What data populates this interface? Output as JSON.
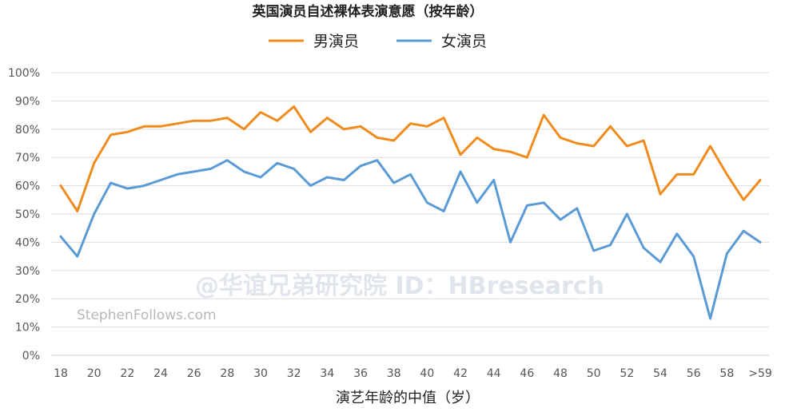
{
  "chart_data": {
    "type": "line",
    "title": "英国演员自述裸体表演意愿（按年龄）",
    "xlabel": "演艺年龄的中值（岁）",
    "ylabel": "",
    "ylim": [
      0,
      100
    ],
    "yticks": [
      "0%",
      "10%",
      "20%",
      "30%",
      "40%",
      "50%",
      "60%",
      "70%",
      "80%",
      "90%",
      "100%"
    ],
    "categories": [
      "18",
      "19",
      "20",
      "21",
      "22",
      "23",
      "24",
      "25",
      "26",
      "27",
      "28",
      "29",
      "30",
      "31",
      "32",
      "33",
      "34",
      "35",
      "36",
      "37",
      "38",
      "39",
      "40",
      "41",
      "42",
      "43",
      "44",
      "45",
      "46",
      "47",
      "48",
      "49",
      "50",
      "51",
      "52",
      "53",
      "54",
      "55",
      "56",
      "57",
      "58",
      "59",
      ">59"
    ],
    "xtick_labels": [
      "18",
      "20",
      "22",
      "24",
      "26",
      "28",
      "30",
      "32",
      "34",
      "36",
      "38",
      "40",
      "42",
      "44",
      "46",
      "48",
      "50",
      "52",
      "54",
      "56",
      "58",
      ">59"
    ],
    "legend_position": "top-center",
    "grid": true,
    "series": [
      {
        "name": "男演员",
        "color": "#f08c1e",
        "values": [
          60,
          51,
          68,
          78,
          79,
          81,
          81,
          82,
          83,
          83,
          84,
          80,
          86,
          83,
          88,
          79,
          84,
          80,
          81,
          77,
          76,
          82,
          81,
          84,
          71,
          77,
          73,
          72,
          70,
          85,
          77,
          75,
          74,
          81,
          74,
          76,
          57,
          64,
          64,
          74,
          64,
          55,
          62
        ]
      },
      {
        "name": "女演员",
        "color": "#5b9bd5",
        "values": [
          42,
          35,
          50,
          61,
          59,
          60,
          62,
          64,
          65,
          66,
          69,
          65,
          63,
          68,
          66,
          60,
          63,
          62,
          67,
          69,
          61,
          64,
          54,
          51,
          65,
          54,
          62,
          40,
          53,
          54,
          48,
          52,
          37,
          39,
          50,
          38,
          33,
          43,
          35,
          13,
          36,
          44,
          40
        ]
      }
    ]
  },
  "credit": "StephenFollows.com",
  "watermark": "@华谊兄弟研究院 ID：HBresearch"
}
